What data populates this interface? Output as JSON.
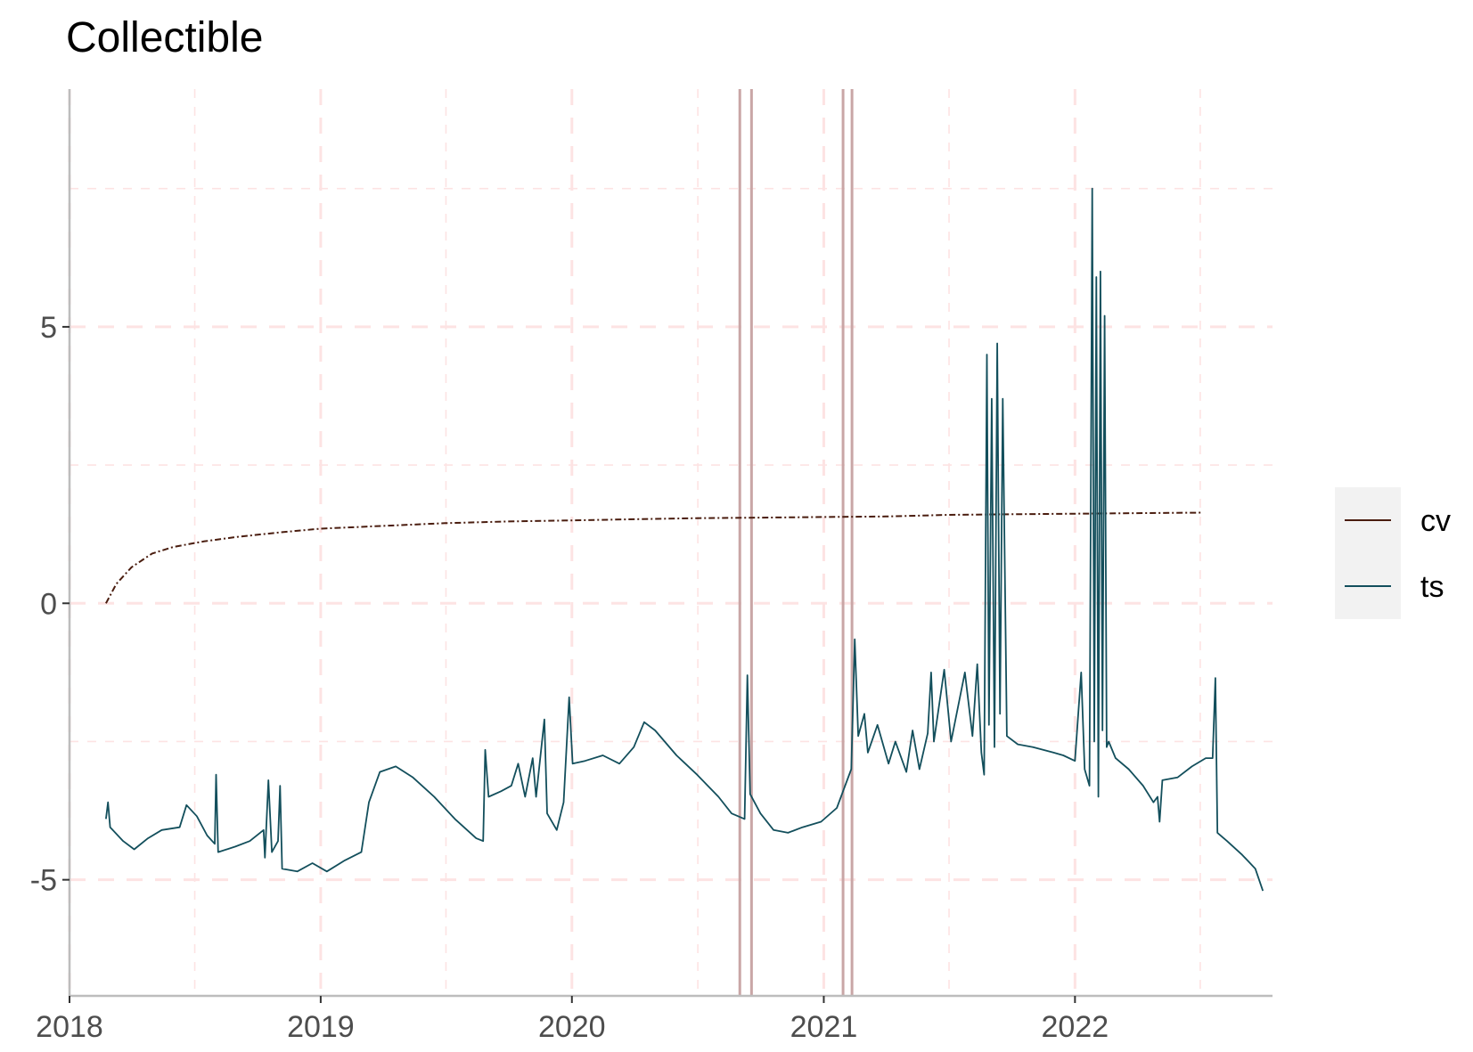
{
  "chart_data": {
    "type": "line",
    "title": "Collectible",
    "xlabel": "",
    "ylabel": "",
    "x_ticks": [
      "2018",
      "2019",
      "2020",
      "2021",
      "2022"
    ],
    "y_ticks": [
      "-5",
      "0",
      "5"
    ],
    "xlim": [
      "2018-01-01",
      "2022-10-15"
    ],
    "ylim": [
      -7.1,
      9.3
    ],
    "grid": true,
    "legend_position": "right",
    "legend": [
      {
        "name": "cv",
        "color": "#4a1d0f",
        "style": "dot-dash"
      },
      {
        "name": "ts",
        "color": "#134f5c",
        "style": "solid"
      }
    ],
    "vertical_lines": [
      "2020-09-01",
      "2020-09-18",
      "2021-01-29",
      "2021-02-11"
    ],
    "series": [
      {
        "name": "cv",
        "color": "#4a1d0f",
        "points": [
          [
            "2018-02-23",
            0.0
          ],
          [
            "2018-03-10",
            0.35
          ],
          [
            "2018-04-01",
            0.65
          ],
          [
            "2018-05-01",
            0.9
          ],
          [
            "2018-06-01",
            1.02
          ],
          [
            "2018-07-15",
            1.12
          ],
          [
            "2018-09-01",
            1.2
          ],
          [
            "2018-11-01",
            1.28
          ],
          [
            "2019-01-01",
            1.35
          ],
          [
            "2019-04-01",
            1.4
          ],
          [
            "2019-07-01",
            1.45
          ],
          [
            "2019-10-01",
            1.48
          ],
          [
            "2020-01-01",
            1.5
          ],
          [
            "2020-04-01",
            1.52
          ],
          [
            "2020-07-01",
            1.54
          ],
          [
            "2020-10-01",
            1.55
          ],
          [
            "2021-01-01",
            1.56
          ],
          [
            "2021-04-01",
            1.57
          ],
          [
            "2021-07-01",
            1.6
          ],
          [
            "2021-10-01",
            1.61
          ],
          [
            "2022-01-01",
            1.62
          ],
          [
            "2022-04-01",
            1.63
          ],
          [
            "2022-07-06",
            1.64
          ]
        ]
      },
      {
        "name": "ts",
        "color": "#134f5c",
        "points": [
          [
            "2018-02-23",
            -3.9
          ],
          [
            "2018-02-26",
            -3.6
          ],
          [
            "2018-03-01",
            -4.05
          ],
          [
            "2018-03-20",
            -4.3
          ],
          [
            "2018-04-05",
            -4.45
          ],
          [
            "2018-04-25",
            -4.25
          ],
          [
            "2018-05-15",
            -4.1
          ],
          [
            "2018-06-10",
            -4.05
          ],
          [
            "2018-06-20",
            -3.65
          ],
          [
            "2018-07-05",
            -3.85
          ],
          [
            "2018-07-20",
            -4.2
          ],
          [
            "2018-07-31",
            -4.35
          ],
          [
            "2018-08-02",
            -3.1
          ],
          [
            "2018-08-05",
            -4.5
          ],
          [
            "2018-08-30",
            -4.4
          ],
          [
            "2018-09-20",
            -4.3
          ],
          [
            "2018-10-10",
            -4.1
          ],
          [
            "2018-10-12",
            -4.6
          ],
          [
            "2018-10-17",
            -3.2
          ],
          [
            "2018-10-22",
            -4.5
          ],
          [
            "2018-10-31",
            -4.3
          ],
          [
            "2018-11-03",
            -3.3
          ],
          [
            "2018-11-06",
            -4.8
          ],
          [
            "2018-11-28",
            -4.85
          ],
          [
            "2018-12-20",
            -4.7
          ],
          [
            "2019-01-10",
            -4.85
          ],
          [
            "2019-02-05",
            -4.65
          ],
          [
            "2019-03-01",
            -4.5
          ],
          [
            "2019-03-12",
            -3.6
          ],
          [
            "2019-03-28",
            -3.05
          ],
          [
            "2019-04-20",
            -2.95
          ],
          [
            "2019-05-15",
            -3.15
          ],
          [
            "2019-06-15",
            -3.5
          ],
          [
            "2019-07-15",
            -3.9
          ],
          [
            "2019-08-15",
            -4.25
          ],
          [
            "2019-08-25",
            -4.3
          ],
          [
            "2019-08-28",
            -2.65
          ],
          [
            "2019-09-02",
            -3.5
          ],
          [
            "2019-09-20",
            -3.4
          ],
          [
            "2019-10-05",
            -3.3
          ],
          [
            "2019-10-15",
            -2.9
          ],
          [
            "2019-10-25",
            -3.5
          ],
          [
            "2019-11-05",
            -2.8
          ],
          [
            "2019-11-10",
            -3.5
          ],
          [
            "2019-11-22",
            -2.1
          ],
          [
            "2019-11-26",
            -3.8
          ],
          [
            "2019-12-10",
            -4.1
          ],
          [
            "2019-12-20",
            -3.6
          ],
          [
            "2019-12-28",
            -1.7
          ],
          [
            "2020-01-02",
            -2.9
          ],
          [
            "2020-01-20",
            -2.85
          ],
          [
            "2020-02-15",
            -2.75
          ],
          [
            "2020-03-10",
            -2.9
          ],
          [
            "2020-03-31",
            -2.6
          ],
          [
            "2020-04-15",
            -2.15
          ],
          [
            "2020-05-01",
            -2.3
          ],
          [
            "2020-06-01",
            -2.75
          ],
          [
            "2020-07-01",
            -3.1
          ],
          [
            "2020-08-01",
            -3.5
          ],
          [
            "2020-08-20",
            -3.8
          ],
          [
            "2020-09-08",
            -3.9
          ],
          [
            "2020-09-12",
            -1.3
          ],
          [
            "2020-09-16",
            -3.45
          ],
          [
            "2020-10-01",
            -3.8
          ],
          [
            "2020-10-20",
            -4.1
          ],
          [
            "2020-11-10",
            -4.15
          ],
          [
            "2020-12-01",
            -4.05
          ],
          [
            "2020-12-28",
            -3.95
          ],
          [
            "2021-01-20",
            -3.7
          ],
          [
            "2021-02-10",
            -3.0
          ],
          [
            "2021-02-15",
            -0.65
          ],
          [
            "2021-02-20",
            -2.4
          ],
          [
            "2021-03-01",
            -2.0
          ],
          [
            "2021-03-06",
            -2.7
          ],
          [
            "2021-03-20",
            -2.2
          ],
          [
            "2021-04-05",
            -2.9
          ],
          [
            "2021-04-15",
            -2.5
          ],
          [
            "2021-05-01",
            -3.05
          ],
          [
            "2021-05-10",
            -2.3
          ],
          [
            "2021-05-20",
            -3.0
          ],
          [
            "2021-06-01",
            -2.35
          ],
          [
            "2021-06-06",
            -1.25
          ],
          [
            "2021-06-10",
            -2.5
          ],
          [
            "2021-06-25",
            -1.2
          ],
          [
            "2021-07-05",
            -2.5
          ],
          [
            "2021-07-25",
            -1.25
          ],
          [
            "2021-08-05",
            -2.4
          ],
          [
            "2021-08-12",
            -1.1
          ],
          [
            "2021-08-18",
            -2.7
          ],
          [
            "2021-08-22",
            -3.1
          ],
          [
            "2021-08-26",
            4.5
          ],
          [
            "2021-08-29",
            -2.2
          ],
          [
            "2021-09-02",
            3.7
          ],
          [
            "2021-09-06",
            -2.6
          ],
          [
            "2021-09-10",
            4.7
          ],
          [
            "2021-09-14",
            -2.0
          ],
          [
            "2021-09-18",
            3.7
          ],
          [
            "2021-09-24",
            -2.4
          ],
          [
            "2021-10-10",
            -2.55
          ],
          [
            "2021-11-01",
            -2.6
          ],
          [
            "2021-12-01",
            -2.7
          ],
          [
            "2021-12-15",
            -2.75
          ],
          [
            "2022-01-01",
            -2.85
          ],
          [
            "2022-01-10",
            -1.25
          ],
          [
            "2022-01-15",
            -3.0
          ],
          [
            "2022-01-22",
            -3.3
          ],
          [
            "2022-01-26",
            7.5
          ],
          [
            "2022-01-29",
            -2.5
          ],
          [
            "2022-02-01",
            5.9
          ],
          [
            "2022-02-04",
            -3.5
          ],
          [
            "2022-02-07",
            6.0
          ],
          [
            "2022-02-10",
            -2.3
          ],
          [
            "2022-02-13",
            5.2
          ],
          [
            "2022-02-16",
            -2.6
          ],
          [
            "2022-02-19",
            -2.5
          ],
          [
            "2022-03-01",
            -2.8
          ],
          [
            "2022-03-20",
            -3.0
          ],
          [
            "2022-04-10",
            -3.3
          ],
          [
            "2022-04-25",
            -3.6
          ],
          [
            "2022-05-01",
            -3.5
          ],
          [
            "2022-05-04",
            -3.95
          ],
          [
            "2022-05-08",
            -3.2
          ],
          [
            "2022-05-30",
            -3.15
          ],
          [
            "2022-06-20",
            -2.95
          ],
          [
            "2022-07-10",
            -2.8
          ],
          [
            "2022-07-20",
            -2.8
          ],
          [
            "2022-07-24",
            -1.35
          ],
          [
            "2022-07-27",
            -4.15
          ],
          [
            "2022-08-10",
            -4.3
          ],
          [
            "2022-09-01",
            -4.55
          ],
          [
            "2022-09-20",
            -4.8
          ],
          [
            "2022-10-01",
            -5.2
          ]
        ]
      }
    ]
  }
}
